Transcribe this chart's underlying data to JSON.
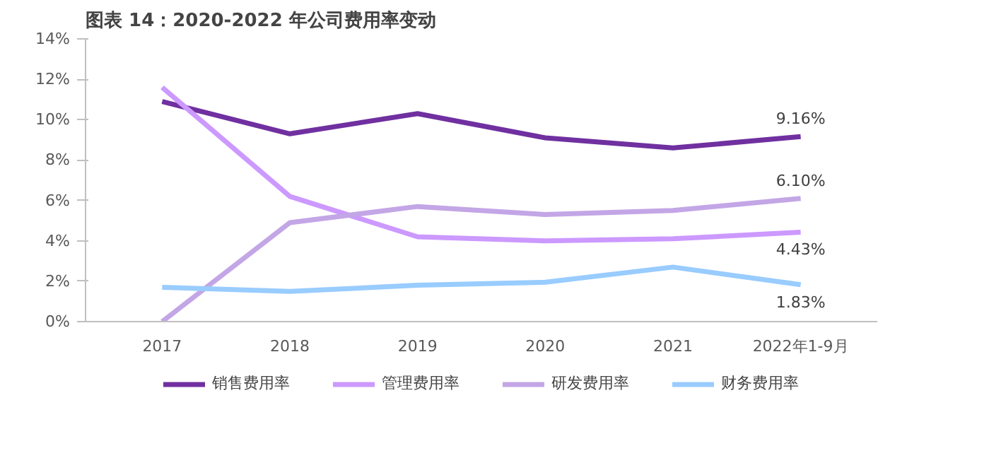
{
  "chart_data": {
    "type": "line",
    "title": "图表 14：2020-2022 年公司费用率变动",
    "categories": [
      "2017",
      "2018",
      "2019",
      "2020",
      "2021",
      "2022年1-9月"
    ],
    "series": [
      {
        "name": "销售费用率",
        "color": "#7030a0",
        "values": [
          10.9,
          9.3,
          10.3,
          9.1,
          8.6,
          9.16
        ],
        "value_labels": [
          null,
          null,
          null,
          null,
          null,
          "9.16%"
        ]
      },
      {
        "name": "管理费用率",
        "color": "#cc99ff",
        "values": [
          11.6,
          6.2,
          4.2,
          4.0,
          4.1,
          4.43
        ],
        "value_labels": [
          null,
          null,
          null,
          null,
          null,
          "4.43%"
        ]
      },
      {
        "name": "研发费用率",
        "color": "#c3a6e6",
        "values": [
          0,
          4.9,
          5.7,
          5.3,
          5.5,
          6.1
        ],
        "value_labels": [
          null,
          null,
          null,
          null,
          null,
          "6.10%"
        ]
      },
      {
        "name": "财务费用率",
        "color": "#99ccff",
        "values": [
          1.7,
          1.5,
          1.8,
          1.95,
          2.7,
          1.83
        ],
        "value_labels": [
          null,
          null,
          null,
          null,
          null,
          "1.83%"
        ]
      }
    ],
    "ylim": [
      0,
      14
    ],
    "yticks": [
      {
        "value": 0,
        "label": "0%"
      },
      {
        "value": 2,
        "label": "2%"
      },
      {
        "value": 4,
        "label": "4%"
      },
      {
        "value": 6,
        "label": "6%"
      },
      {
        "value": 8,
        "label": "8%"
      },
      {
        "value": 10,
        "label": "10%"
      },
      {
        "value": 12,
        "label": "12%"
      },
      {
        "value": 14,
        "label": "14%"
      }
    ],
    "grid": false,
    "legend": "bottom",
    "marker": "none",
    "line_style": "solid"
  }
}
